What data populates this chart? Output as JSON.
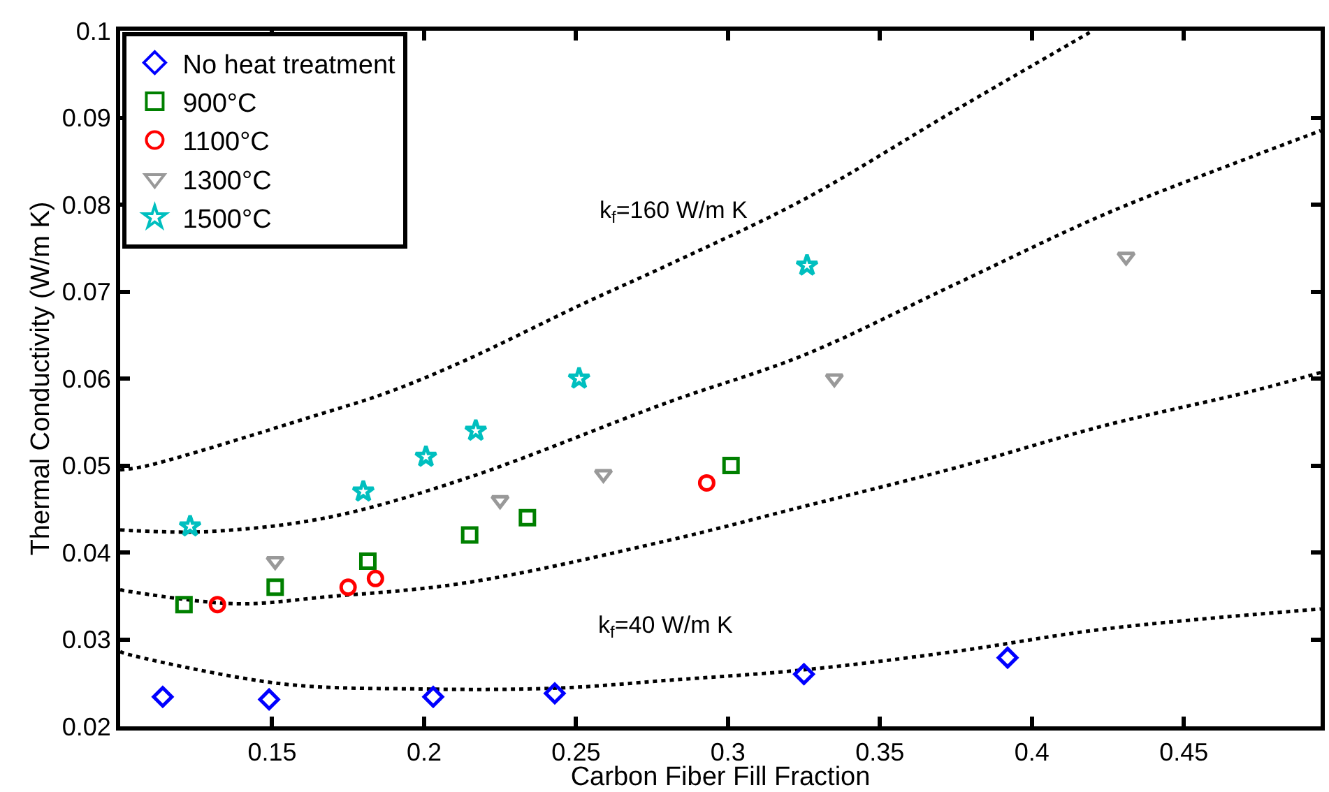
{
  "chart_data": {
    "type": "scatter",
    "xlabel": "Carbon Fiber Fill Fraction",
    "ylabel": "Thermal Conductivity (W/m K)",
    "xlim": [
      0.1,
      0.495
    ],
    "xticks": [
      0.15,
      0.2,
      0.25,
      0.3,
      0.35,
      0.4,
      0.45
    ],
    "ylim": [
      0.02,
      0.1
    ],
    "yticks": [
      0.02,
      0.03,
      0.04,
      0.05,
      0.06,
      0.07,
      0.08,
      0.09,
      0.1
    ],
    "legend": "top left",
    "series": [
      {
        "name": "No heat treatment",
        "color": "#0000ff",
        "marker": "diamond",
        "x": [
          0.114,
          0.149,
          0.203,
          0.243,
          0.325,
          0.392
        ],
        "values": [
          0.0234,
          0.0231,
          0.0234,
          0.0238,
          0.026,
          0.0279
        ]
      },
      {
        "name": "900°C",
        "color": "#008000",
        "marker": "square",
        "x": [
          0.121,
          0.151,
          0.1815,
          0.215,
          0.234,
          0.301
        ],
        "values": [
          0.034,
          0.036,
          0.039,
          0.042,
          0.044,
          0.05
        ]
      },
      {
        "name": "1100°C",
        "color": "#ff0000",
        "marker": "circle",
        "x": [
          0.132,
          0.175,
          0.184,
          0.293
        ],
        "values": [
          0.034,
          0.036,
          0.037,
          0.048
        ]
      },
      {
        "name": "1300°C",
        "color": "#999999",
        "marker": "triangle",
        "x": [
          0.151,
          0.225,
          0.259,
          0.335,
          0.431
        ],
        "values": [
          0.039,
          0.046,
          0.049,
          0.06,
          0.074
        ]
      },
      {
        "name": "1500°C",
        "color": "#00bfbf",
        "marker": "star",
        "x": [
          0.123,
          0.18,
          0.2006,
          0.217,
          0.251,
          0.326
        ],
        "values": [
          0.043,
          0.047,
          0.051,
          0.054,
          0.06,
          0.073
        ]
      },
      {
        "type": "line",
        "color": "#000000",
        "line_style": "dotted",
        "x": [
          0.1,
          0.108,
          0.162,
          0.188,
          0.2136,
          0.2517,
          0.2805,
          0.325,
          0.3745,
          0.419
        ],
        "values": [
          0.0495,
          0.0499,
          0.0555,
          0.0584,
          0.0621,
          0.0685,
          0.0731,
          0.0806,
          0.0908,
          0.0998
        ]
      },
      {
        "type": "line",
        "color": "#000000",
        "line_style": "dotted",
        "x": [
          0.1,
          0.105,
          0.129,
          0.168,
          0.2136,
          0.2805,
          0.325,
          0.3745,
          0.424,
          0.473,
          0.495
        ],
        "values": [
          0.0426,
          0.0425,
          0.0424,
          0.044,
          0.0485,
          0.0573,
          0.0627,
          0.0708,
          0.0789,
          0.0856,
          0.0885
        ]
      },
      {
        "type": "line",
        "color": "#000000",
        "line_style": "dotted",
        "x": [
          0.1,
          0.1032,
          0.138,
          0.168,
          0.2136,
          0.2805,
          0.325,
          0.3745,
          0.424,
          0.473,
          0.495
        ],
        "values": [
          0.0357,
          0.0355,
          0.0341,
          0.0349,
          0.0365,
          0.0414,
          0.0453,
          0.0497,
          0.0546,
          0.0586,
          0.0607
        ]
      },
      {
        "type": "line",
        "color": "#000000",
        "line_style": "dotted",
        "x": [
          0.1,
          0.1024,
          0.153,
          0.1986,
          0.244,
          0.2805,
          0.325,
          0.3745,
          0.424,
          0.495
        ],
        "values": [
          0.0286,
          0.0283,
          0.0249,
          0.0243,
          0.0244,
          0.0253,
          0.0265,
          0.0286,
          0.0312,
          0.0335
        ]
      }
    ],
    "annotations": [
      "k$_{f}$=160 W/m K",
      "k$_{f}$=40 W/m K"
    ]
  }
}
